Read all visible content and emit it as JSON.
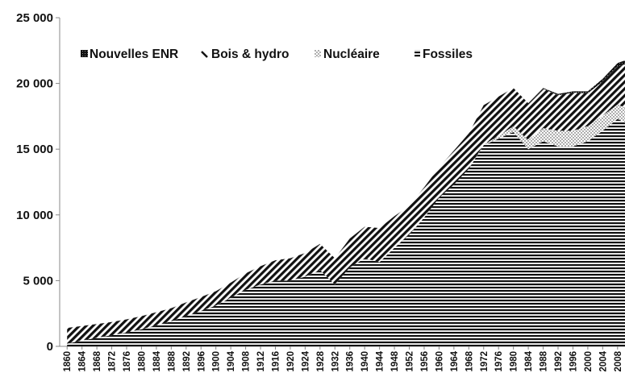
{
  "chart_data": {
    "type": "area",
    "stacked": true,
    "ylim": [
      0,
      25000
    ],
    "y_ticks": [
      {
        "value": 0,
        "label": "0"
      },
      {
        "value": 5000,
        "label": "5 000"
      },
      {
        "value": 10000,
        "label": "10 000"
      },
      {
        "value": 15000,
        "label": "15 000"
      },
      {
        "value": 20000,
        "label": "20 000"
      },
      {
        "value": 25000,
        "label": "25 000"
      }
    ],
    "x_tick_labels": [
      "1860",
      "1864",
      "1868",
      "1872",
      "1876",
      "1880",
      "1884",
      "1888",
      "1892",
      "1896",
      "1900",
      "1904",
      "1908",
      "1912",
      "1916",
      "1920",
      "1924",
      "1928",
      "1932",
      "1936",
      "1940",
      "1944",
      "1948",
      "1952",
      "1956",
      "1960",
      "1964",
      "1968",
      "1972",
      "1976",
      "1980",
      "1984",
      "1988",
      "1992",
      "1996",
      "2000",
      "2004",
      "2008"
    ],
    "legend": [
      {
        "label": "Nouvelles ENR",
        "series": "nouvelles_enr"
      },
      {
        "label": "Bois & hydro",
        "series": "bois_hydro"
      },
      {
        "label": "Nucléaire",
        "series": "nucleaire"
      },
      {
        "label": "Fossiles",
        "series": "fossiles"
      }
    ],
    "legend_position": "top-left",
    "grid": false,
    "x": [
      1860,
      1864,
      1868,
      1872,
      1876,
      1880,
      1884,
      1888,
      1892,
      1896,
      1900,
      1904,
      1908,
      1912,
      1916,
      1920,
      1924,
      1928,
      1932,
      1936,
      1940,
      1944,
      1948,
      1952,
      1956,
      1960,
      1964,
      1968,
      1972,
      1976,
      1980,
      1984,
      1988,
      1992,
      1996,
      2000,
      2004,
      2008,
      2010
    ],
    "series": [
      {
        "name": "Fossiles",
        "key": "fossiles",
        "pattern": "horizontal-stripes",
        "values": [
          200,
          450,
          650,
          850,
          1050,
          1300,
          1600,
          1900,
          2300,
          2700,
          3100,
          3700,
          4300,
          4700,
          5000,
          5000,
          5300,
          5800,
          4700,
          6000,
          6700,
          6400,
          7500,
          8500,
          9800,
          11300,
          12300,
          13500,
          15300,
          15800,
          16300,
          15000,
          15600,
          15200,
          15200,
          15600,
          16400,
          17300,
          17000
        ]
      },
      {
        "name": "Nucléaire",
        "key": "nucleaire",
        "pattern": "dots",
        "values": [
          0,
          0,
          0,
          0,
          0,
          0,
          0,
          0,
          0,
          0,
          0,
          0,
          0,
          0,
          0,
          0,
          0,
          0,
          0,
          0,
          0,
          0,
          0,
          0,
          0,
          0,
          0,
          0,
          50,
          200,
          450,
          700,
          1000,
          1200,
          1200,
          1150,
          1150,
          1100,
          1150
        ]
      },
      {
        "name": "Bois & hydro",
        "key": "bois_hydro",
        "pattern": "diagonal-stripes",
        "values": [
          1200,
          1100,
          1050,
          1000,
          1000,
          1000,
          1000,
          1000,
          1050,
          1050,
          1100,
          1150,
          1250,
          1400,
          1550,
          1700,
          1800,
          2000,
          2000,
          2200,
          2400,
          2600,
          2400,
          2200,
          2300,
          2300,
          2600,
          2700,
          3000,
          3000,
          2900,
          2800,
          3000,
          2700,
          2900,
          2500,
          2600,
          2900,
          3300
        ]
      },
      {
        "name": "Nouvelles ENR",
        "key": "nouvelles_enr",
        "pattern": "checker",
        "values": [
          0,
          0,
          0,
          0,
          0,
          0,
          0,
          0,
          0,
          0,
          0,
          0,
          0,
          0,
          0,
          0,
          0,
          0,
          0,
          0,
          0,
          0,
          0,
          0,
          0,
          0,
          0,
          0,
          0,
          0,
          0,
          0,
          50,
          100,
          100,
          150,
          200,
          250,
          300
        ]
      }
    ]
  }
}
